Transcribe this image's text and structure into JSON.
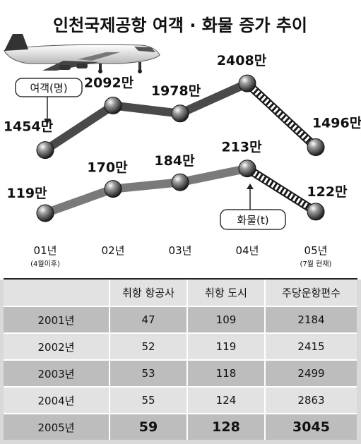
{
  "chart_data": {
    "type": "line",
    "title": "인천국제공항 여객 · 화물 증가 추이",
    "categories": [
      "01년",
      "02년",
      "03년",
      "04년",
      "05년"
    ],
    "category_notes": [
      "(4월이후)",
      "",
      "",
      "",
      "(7월 현재)"
    ],
    "series": [
      {
        "name": "여객(명)",
        "values": [
          1454,
          2092,
          1978,
          2408,
          1496
        ],
        "labels": [
          "1454만",
          "2092만",
          "1978만",
          "2408만",
          "1496만"
        ],
        "color": "#4a4a4a"
      },
      {
        "name": "화물(t)",
        "values": [
          119,
          170,
          184,
          213,
          122
        ],
        "labels": [
          "119만",
          "170만",
          "184만",
          "213만",
          "122만"
        ],
        "color": "#7a7a7a"
      }
    ],
    "last_segment_style": "dotted"
  },
  "table": {
    "headers": [
      "",
      "취항 항공사",
      "취항 도시",
      "주당운항편수"
    ],
    "rows": [
      [
        "2001년",
        "47",
        "109",
        "2184"
      ],
      [
        "2002년",
        "52",
        "119",
        "2415"
      ],
      [
        "2003년",
        "53",
        "118",
        "2499"
      ],
      [
        "2004년",
        "55",
        "124",
        "2863"
      ],
      [
        "2005년",
        "59",
        "128",
        "3045"
      ]
    ]
  }
}
